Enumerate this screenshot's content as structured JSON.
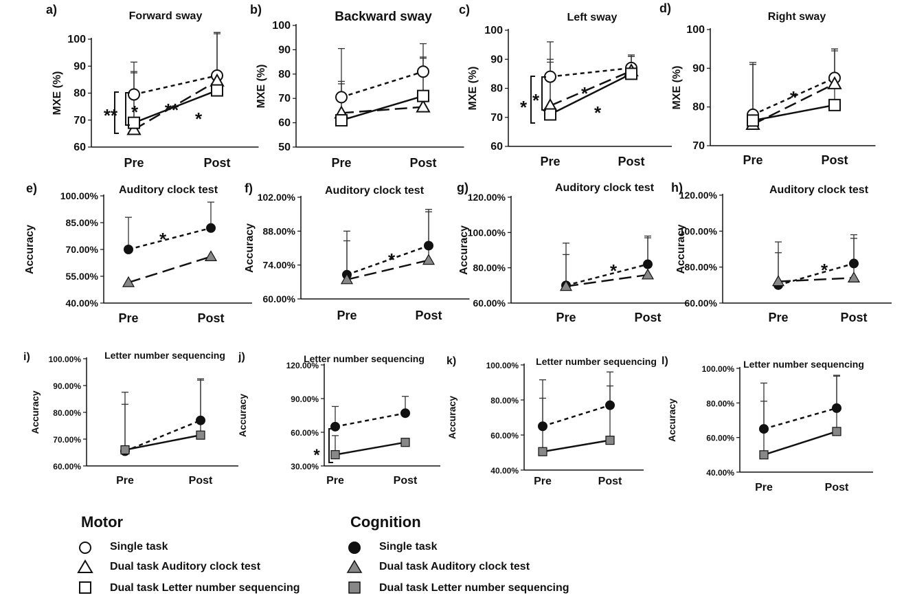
{
  "chart_data": [
    {
      "id": "a",
      "type": "line",
      "panel_label": "a)",
      "title": "Forward sway",
      "ylabel": "MXE (%)",
      "categories": [
        "Pre",
        "Post"
      ],
      "ylim": [
        60,
        100
      ],
      "yticks": [
        "60",
        "70",
        "80",
        "90",
        "100"
      ],
      "series": [
        {
          "name": "Single task",
          "group": "motor",
          "marker": "circle",
          "dash": "short",
          "values": [
            79.5,
            86.5
          ],
          "err": [
            12,
            16
          ]
        },
        {
          "name": "Dual task Auditory clock test",
          "group": "motor",
          "marker": "triangle",
          "dash": "long",
          "values": [
            66.5,
            84.5
          ],
          "err": [
            21,
            18
          ]
        },
        {
          "name": "Dual task Letter number sequencing",
          "group": "motor",
          "marker": "square",
          "dash": "solid",
          "values": [
            69,
            81
          ],
          "err": [
            19,
            21
          ]
        }
      ],
      "annotations": [
        "**",
        "*",
        "**",
        "*"
      ]
    },
    {
      "id": "b",
      "type": "line",
      "panel_label": "b)",
      "title": "Backward sway",
      "ylabel": "MXE (%)",
      "categories": [
        "Pre",
        "Post"
      ],
      "ylim": [
        50,
        100
      ],
      "yticks": [
        "50",
        "60",
        "70",
        "80",
        "90",
        "100"
      ],
      "series": [
        {
          "name": "Single task",
          "group": "motor",
          "marker": "circle",
          "dash": "short",
          "values": [
            70.5,
            81
          ],
          "err": [
            20,
            11.5
          ]
        },
        {
          "name": "Dual task Auditory clock test",
          "group": "motor",
          "marker": "triangle",
          "dash": "long",
          "values": [
            64,
            66.5
          ],
          "err": [
            13,
            20
          ]
        },
        {
          "name": "Dual task Letter number sequencing",
          "group": "motor",
          "marker": "square",
          "dash": "solid",
          "values": [
            61,
            71
          ],
          "err": [
            15,
            16
          ]
        }
      ],
      "annotations": []
    },
    {
      "id": "c",
      "type": "line",
      "panel_label": "c)",
      "title": "Left sway",
      "ylabel": "MXE (%)",
      "categories": [
        "Pre",
        "Post"
      ],
      "ylim": [
        60,
        100
      ],
      "yticks": [
        "60",
        "70",
        "80",
        "90",
        "100"
      ],
      "series": [
        {
          "name": "Single task",
          "group": "motor",
          "marker": "circle",
          "dash": "short",
          "values": [
            84,
            87
          ],
          "err": [
            12,
            4.5
          ]
        },
        {
          "name": "Dual task Auditory clock test",
          "group": "motor",
          "marker": "triangle",
          "dash": "long",
          "values": [
            74,
            86
          ],
          "err": [
            16,
            5
          ]
        },
        {
          "name": "Dual task Letter number sequencing",
          "group": "motor",
          "marker": "square",
          "dash": "solid",
          "values": [
            71,
            85
          ],
          "err": [
            18,
            6
          ]
        }
      ],
      "annotations": [
        "*",
        "*",
        "*",
        "*"
      ]
    },
    {
      "id": "d",
      "type": "line",
      "panel_label": "d)",
      "title": "Right sway",
      "ylabel": "MXE (%)",
      "categories": [
        "Pre",
        "Post"
      ],
      "ylim": [
        70,
        100
      ],
      "yticks": [
        "70",
        "80",
        "90",
        "100"
      ],
      "series": [
        {
          "name": "Single task",
          "group": "motor",
          "marker": "circle",
          "dash": "short",
          "values": [
            78,
            87.5
          ],
          "err": [
            13.5,
            7.5
          ]
        },
        {
          "name": "Dual task Auditory clock test",
          "group": "motor",
          "marker": "triangle",
          "dash": "long",
          "values": [
            75.5,
            86
          ],
          "err": [
            15.5,
            9
          ]
        },
        {
          "name": "Dual task Letter number sequencing",
          "group": "motor",
          "marker": "square",
          "dash": "solid",
          "values": [
            76.5,
            80.5
          ],
          "err": [
            14.5,
            14
          ]
        }
      ],
      "annotations": [
        "*"
      ]
    },
    {
      "id": "e",
      "type": "line",
      "panel_label": "e)",
      "title": "Auditory clock test",
      "ylabel": "Accuracy",
      "categories": [
        "Pre",
        "Post"
      ],
      "ylim": [
        40,
        100
      ],
      "yticks": [
        "40.00%",
        "55.00%",
        "70.00%",
        "85.00%",
        "100.00%"
      ],
      "series": [
        {
          "name": "Single task",
          "group": "cognition",
          "marker": "circle-filled",
          "dash": "short",
          "values": [
            70,
            82
          ],
          "err": [
            18,
            14.5
          ]
        },
        {
          "name": "Dual task Auditory clock test",
          "group": "cognition",
          "marker": "triangle-filled",
          "dash": "long",
          "values": [
            51.5,
            66
          ],
          "err": [
            0,
            0
          ]
        }
      ],
      "annotations": [
        "*"
      ]
    },
    {
      "id": "f",
      "type": "line",
      "panel_label": "f)",
      "title": "Auditory clock test",
      "ylabel": "Accuracy",
      "categories": [
        "Pre",
        "Post"
      ],
      "ylim": [
        60,
        102
      ],
      "yticks": [
        "60.00%",
        "74.00%",
        "88.00%",
        "102.00%"
      ],
      "series": [
        {
          "name": "Single task",
          "group": "cognition",
          "marker": "circle-filled",
          "dash": "short",
          "values": [
            70,
            82
          ],
          "err": [
            18,
            15
          ]
        },
        {
          "name": "Dual task Auditory clock test",
          "group": "cognition",
          "marker": "triangle-filled",
          "dash": "long",
          "values": [
            68,
            76
          ],
          "err": [
            16,
            20
          ]
        }
      ],
      "annotations": [
        "*"
      ]
    },
    {
      "id": "g",
      "type": "line",
      "panel_label": "g)",
      "title": "Auditory clock test",
      "ylabel": "Accuracy",
      "categories": [
        "Pre",
        "Post"
      ],
      "ylim": [
        60,
        120
      ],
      "yticks": [
        "60.00%",
        "80.00%",
        "100.00%",
        "120.00%"
      ],
      "series": [
        {
          "name": "Single task",
          "group": "cognition",
          "marker": "circle-filled",
          "dash": "short",
          "values": [
            70,
            82
          ],
          "err": [
            24,
            16
          ]
        },
        {
          "name": "Dual task Auditory clock test",
          "group": "cognition",
          "marker": "triangle-filled",
          "dash": "long",
          "values": [
            69.5,
            76
          ],
          "err": [
            18,
            21
          ]
        }
      ],
      "annotations": [
        "*"
      ]
    },
    {
      "id": "h",
      "type": "line",
      "panel_label": "h)",
      "title": "Auditory clock test",
      "ylabel": "Accuracy",
      "categories": [
        "Pre",
        "Post"
      ],
      "ylim": [
        60,
        120
      ],
      "yticks": [
        "60.00%",
        "80.00%",
        "100.00%",
        "120.00%"
      ],
      "series": [
        {
          "name": "Single task",
          "group": "cognition",
          "marker": "circle-filled",
          "dash": "short",
          "values": [
            70,
            82
          ],
          "err": [
            24,
            16
          ]
        },
        {
          "name": "Dual task Auditory clock test",
          "group": "cognition",
          "marker": "triangle-filled",
          "dash": "long",
          "values": [
            72,
            74
          ],
          "err": [
            16,
            22
          ]
        }
      ],
      "annotations": [
        "*"
      ]
    },
    {
      "id": "i",
      "type": "line",
      "panel_label": "i)",
      "title": "Letter number sequencing",
      "ylabel": "Accuracy",
      "categories": [
        "Pre",
        "Post"
      ],
      "ylim": [
        60,
        100
      ],
      "yticks": [
        "60.00%",
        "70.00%",
        "80.00%",
        "90.00%",
        "100.00%"
      ],
      "series": [
        {
          "name": "Single task",
          "group": "cognition",
          "marker": "circle-filled",
          "dash": "short",
          "values": [
            65.5,
            77
          ],
          "err": [
            22,
            15
          ]
        },
        {
          "name": "Dual task Letter number sequencing",
          "group": "cognition",
          "marker": "square-filled",
          "dash": "solid",
          "values": [
            66,
            71.5
          ],
          "err": [
            17,
            21
          ]
        }
      ],
      "annotations": []
    },
    {
      "id": "j",
      "type": "line",
      "panel_label": "j)",
      "title": "Letter number sequencing",
      "ylabel": "Accuracy",
      "categories": [
        "Pre",
        "Post"
      ],
      "ylim": [
        30,
        120
      ],
      "yticks": [
        "30.00%",
        "60.00%",
        "90.00%",
        "120.00%"
      ],
      "series": [
        {
          "name": "Single task",
          "group": "cognition",
          "marker": "circle-filled",
          "dash": "short",
          "values": [
            65,
            77
          ],
          "err": [
            18,
            15
          ]
        },
        {
          "name": "Dual task Letter number sequencing",
          "group": "cognition",
          "marker": "square-filled",
          "dash": "solid",
          "values": [
            40,
            51
          ],
          "err": [
            17,
            0
          ]
        }
      ],
      "annotations": [
        "*"
      ]
    },
    {
      "id": "k",
      "type": "line",
      "panel_label": "k)",
      "title": "Letter number sequencing",
      "ylabel": "Accuracy",
      "categories": [
        "Pre",
        "Post"
      ],
      "ylim": [
        40,
        100
      ],
      "yticks": [
        "40.00%",
        "60.00%",
        "80.00%",
        "100.00%"
      ],
      "series": [
        {
          "name": "Single task",
          "group": "cognition",
          "marker": "circle-filled",
          "dash": "short",
          "values": [
            65,
            77
          ],
          "err": [
            26.5,
            19
          ]
        },
        {
          "name": "Dual task Letter number sequencing",
          "group": "cognition",
          "marker": "square-filled",
          "dash": "solid",
          "values": [
            50.5,
            57
          ],
          "err": [
            30.5,
            31
          ]
        }
      ],
      "annotations": []
    },
    {
      "id": "l",
      "type": "line",
      "panel_label": "l)",
      "title": "Letter number sequencing",
      "ylabel": "Accuracy",
      "categories": [
        "Pre",
        "Post"
      ],
      "ylim": [
        40,
        100
      ],
      "yticks": [
        "40.00%",
        "60.00%",
        "80.00%",
        "100.00%"
      ],
      "series": [
        {
          "name": "Single task",
          "group": "cognition",
          "marker": "circle-filled",
          "dash": "short",
          "values": [
            65,
            77
          ],
          "err": [
            26.5,
            19
          ]
        },
        {
          "name": "Dual task Letter number sequencing",
          "group": "cognition",
          "marker": "square-filled",
          "dash": "solid",
          "values": [
            50,
            63.5
          ],
          "err": [
            31,
            32
          ]
        }
      ],
      "annotations": []
    }
  ],
  "legend": {
    "motor": {
      "title": "Motor",
      "items": [
        {
          "marker": "circle",
          "label": "Single task"
        },
        {
          "marker": "triangle",
          "label": "Dual task Auditory clock test"
        },
        {
          "marker": "square",
          "label": "Dual task Letter number sequencing"
        }
      ]
    },
    "cognition": {
      "title": "Cognition",
      "items": [
        {
          "marker": "circle-filled",
          "label": "Single task"
        },
        {
          "marker": "triangle-filled",
          "label": "Dual task Auditory clock test"
        },
        {
          "marker": "square-filled",
          "label": "Dual task Letter number sequencing"
        }
      ]
    }
  }
}
